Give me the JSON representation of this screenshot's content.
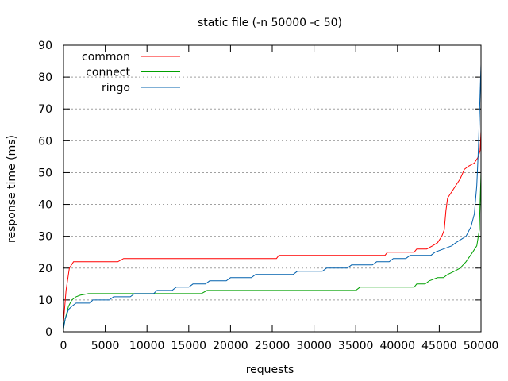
{
  "chart_data": {
    "type": "line",
    "title": "static file (-n 50000 -c 50)",
    "xlabel": "requests",
    "ylabel": "response time (ms)",
    "xlim": [
      0,
      50000
    ],
    "ylim": [
      0,
      90
    ],
    "xticks": [
      0,
      5000,
      10000,
      15000,
      20000,
      25000,
      30000,
      35000,
      40000,
      45000,
      50000
    ],
    "yticks": [
      0,
      10,
      20,
      30,
      40,
      50,
      60,
      70,
      80,
      90
    ],
    "grid": true,
    "legend": "top-left",
    "series": [
      {
        "name": "common",
        "color": "#ff0000",
        "points": [
          [
            0,
            3
          ],
          [
            300,
            13
          ],
          [
            700,
            20
          ],
          [
            1200,
            22
          ],
          [
            6500,
            22
          ],
          [
            7200,
            23
          ],
          [
            25500,
            23
          ],
          [
            25800,
            24
          ],
          [
            38500,
            24
          ],
          [
            38800,
            25
          ],
          [
            42000,
            25
          ],
          [
            42300,
            26
          ],
          [
            43500,
            26
          ],
          [
            44200,
            27
          ],
          [
            44800,
            28
          ],
          [
            45300,
            30
          ],
          [
            45600,
            32
          ],
          [
            45800,
            38
          ],
          [
            46000,
            42
          ],
          [
            46500,
            44
          ],
          [
            47000,
            46
          ],
          [
            47500,
            48
          ],
          [
            48000,
            51
          ],
          [
            48500,
            52
          ],
          [
            49200,
            53
          ],
          [
            49700,
            55
          ],
          [
            49900,
            57
          ],
          [
            50000,
            63
          ]
        ]
      },
      {
        "name": "connect",
        "color": "#00a000",
        "points": [
          [
            0,
            1
          ],
          [
            200,
            4
          ],
          [
            600,
            8
          ],
          [
            1000,
            10
          ],
          [
            1500,
            11
          ],
          [
            2000,
            11.5
          ],
          [
            3000,
            12
          ],
          [
            16500,
            12
          ],
          [
            17200,
            13
          ],
          [
            35000,
            13
          ],
          [
            35500,
            14
          ],
          [
            42000,
            14
          ],
          [
            42300,
            15
          ],
          [
            43300,
            15
          ],
          [
            43800,
            16
          ],
          [
            44800,
            17
          ],
          [
            45500,
            17
          ],
          [
            46000,
            18
          ],
          [
            46800,
            19
          ],
          [
            47500,
            20
          ],
          [
            48200,
            22
          ],
          [
            49000,
            25
          ],
          [
            49500,
            27
          ],
          [
            49800,
            32
          ],
          [
            50000,
            50
          ]
        ]
      },
      {
        "name": "ringo",
        "color": "#0060ad",
        "points": [
          [
            0,
            1
          ],
          [
            200,
            4
          ],
          [
            600,
            7
          ],
          [
            1000,
            8
          ],
          [
            1500,
            9
          ],
          [
            3200,
            9
          ],
          [
            3500,
            10
          ],
          [
            5500,
            10
          ],
          [
            6000,
            11
          ],
          [
            8000,
            11
          ],
          [
            8500,
            12
          ],
          [
            10800,
            12
          ],
          [
            11200,
            13
          ],
          [
            13000,
            13
          ],
          [
            13500,
            14
          ],
          [
            15000,
            14
          ],
          [
            15500,
            15
          ],
          [
            17000,
            15
          ],
          [
            17500,
            16
          ],
          [
            19500,
            16
          ],
          [
            20000,
            17
          ],
          [
            22500,
            17
          ],
          [
            23000,
            18
          ],
          [
            27500,
            18
          ],
          [
            28000,
            19
          ],
          [
            31000,
            19
          ],
          [
            31500,
            20
          ],
          [
            34000,
            20
          ],
          [
            34500,
            21
          ],
          [
            37000,
            21
          ],
          [
            37500,
            22
          ],
          [
            39000,
            22
          ],
          [
            39500,
            23
          ],
          [
            41000,
            23
          ],
          [
            41500,
            24
          ],
          [
            44000,
            24
          ],
          [
            44500,
            25
          ],
          [
            45500,
            26
          ],
          [
            46500,
            27
          ],
          [
            47000,
            28
          ],
          [
            47600,
            29
          ],
          [
            48200,
            30
          ],
          [
            48800,
            33
          ],
          [
            49200,
            37
          ],
          [
            49500,
            46
          ],
          [
            49700,
            58
          ],
          [
            49900,
            75
          ],
          [
            50000,
            84
          ]
        ]
      }
    ]
  }
}
